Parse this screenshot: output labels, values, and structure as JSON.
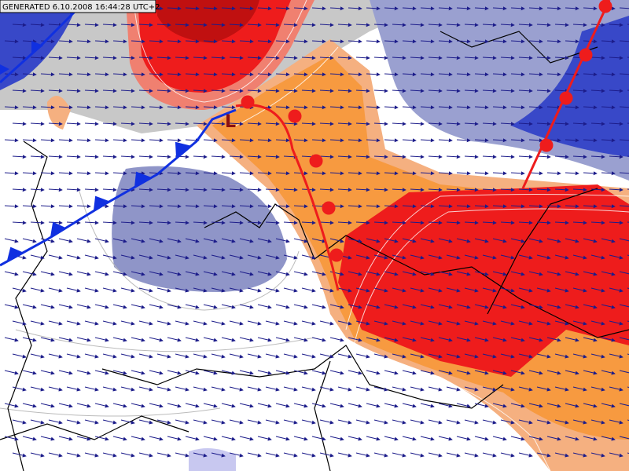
{
  "header": {
    "title": "GENERATED 6.10.2008 16:44:28 UTC+2"
  },
  "map": {
    "pressure_label": "L"
  }
}
